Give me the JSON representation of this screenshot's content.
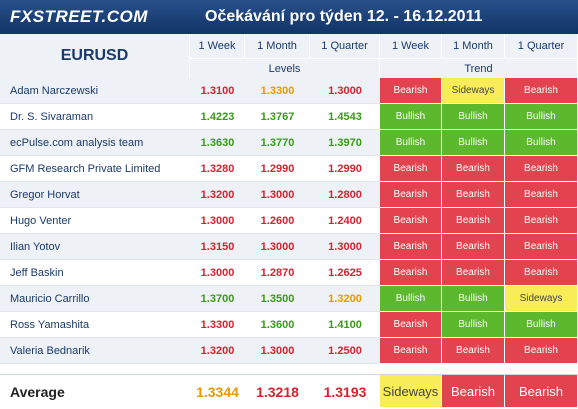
{
  "header": {
    "logo": "FXSTREET.COM",
    "title": "Očekávání pro týden 12. - 16.12.2011"
  },
  "table": {
    "pair": "EURUSD",
    "columns": [
      "1 Week",
      "1 Month",
      "1 Quarter",
      "1 Week",
      "1 Month",
      "1 Quarter"
    ],
    "groups": [
      "Levels",
      "Trend"
    ],
    "rows": [
      [
        "Adam Narczewski",
        "1.3100",
        "1.3300",
        "1.3000",
        "Bearish",
        "Sideways",
        "Bearish"
      ],
      [
        "Dr. S. Sivaraman",
        "1.4223",
        "1.3767",
        "1.4543",
        "Bullish",
        "Bullish",
        "Bullish"
      ],
      [
        "ecPulse.com analysis team",
        "1.3630",
        "1.3770",
        "1.3970",
        "Bullish",
        "Bullish",
        "Bullish"
      ],
      [
        "GFM Research Private Limited",
        "1.3280",
        "1.2990",
        "1.2990",
        "Bearish",
        "Bearish",
        "Bearish"
      ],
      [
        "Gregor Horvat",
        "1.3200",
        "1.3000",
        "1.2800",
        "Bearish",
        "Bearish",
        "Bearish"
      ],
      [
        "Hugo Venter",
        "1.3000",
        "1.2600",
        "1.2400",
        "Bearish",
        "Bearish",
        "Bearish"
      ],
      [
        "Ilian Yotov",
        "1.3150",
        "1.3000",
        "1.3000",
        "Bearish",
        "Bearish",
        "Bearish"
      ],
      [
        "Jeff Baskin",
        "1.3000",
        "1.2870",
        "1.2625",
        "Bearish",
        "Bearish",
        "Bearish"
      ],
      [
        "Mauricio Carrillo",
        "1.3700",
        "1.3500",
        "1.3200",
        "Bullish",
        "Bullish",
        "Sideways"
      ],
      [
        "Ross Yamashita",
        "1.3300",
        "1.3600",
        "1.4100",
        "Bearish",
        "Bullish",
        "Bullish"
      ],
      [
        "Valeria Bednarik",
        "1.3200",
        "1.3000",
        "1.2500",
        "Bearish",
        "Bearish",
        "Bearish"
      ]
    ],
    "average": [
      "Average",
      "1.3344",
      "1.3218",
      "1.3193",
      "Sideways",
      "Bearish",
      "Bearish"
    ]
  }
}
